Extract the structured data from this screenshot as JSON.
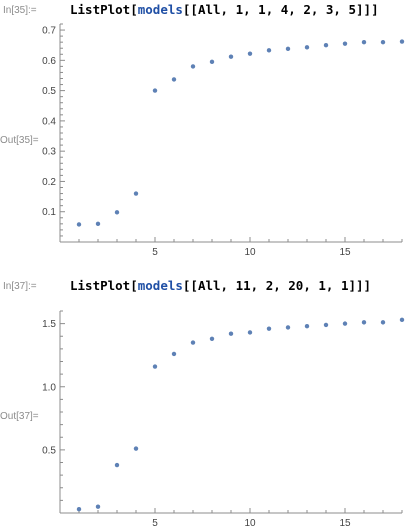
{
  "cells": [
    {
      "in_label": "In[35]:=",
      "out_label": "Out[35]=",
      "input": {
        "fn": "ListPlot",
        "open": "[",
        "sym": "models",
        "args": "[[All, 1, 1, 4, 2, 3, 5]]",
        "close": "]"
      }
    },
    {
      "in_label": "In[37]:=",
      "out_label": "Out[37]=",
      "input": {
        "fn": "ListPlot",
        "open": "[",
        "sym": "models",
        "args": "[[All, 11, 2, 20, 1, 1]]",
        "close": "]"
      }
    }
  ],
  "colors": {
    "points": "#5e81b5",
    "axis": "#8c8c8c",
    "in_label": "#8c8c8c",
    "symbol": "#1f4fa5"
  },
  "chart_data": [
    {
      "type": "scatter",
      "title": "",
      "xlabel": "",
      "ylabel": "",
      "xlim": [
        0,
        18
      ],
      "ylim": [
        0,
        0.72
      ],
      "x_ticks": [
        5,
        10,
        15
      ],
      "x_tick_labels": [
        "5",
        "10",
        "15"
      ],
      "y_ticks": [
        0.1,
        0.2,
        0.3,
        0.4,
        0.5,
        0.6,
        0.7
      ],
      "y_tick_labels": [
        "0.1",
        "0.2",
        "0.3",
        "0.4",
        "0.5",
        "0.6",
        "0.7"
      ],
      "grid": false,
      "series": [
        {
          "x": [
            1,
            2,
            3,
            4,
            5,
            6,
            7,
            8,
            9,
            10,
            11,
            12,
            13,
            14,
            15,
            16,
            17,
            18
          ],
          "y": [
            0.058,
            0.06,
            0.098,
            0.16,
            0.5,
            0.537,
            0.58,
            0.595,
            0.612,
            0.622,
            0.633,
            0.638,
            0.643,
            0.65,
            0.655,
            0.66,
            0.66,
            0.662
          ]
        }
      ]
    },
    {
      "type": "scatter",
      "title": "",
      "xlabel": "",
      "ylabel": "",
      "xlim": [
        0,
        18
      ],
      "ylim": [
        0,
        1.6
      ],
      "x_ticks": [
        5,
        10,
        15
      ],
      "x_tick_labels": [
        "5",
        "10",
        "15"
      ],
      "y_ticks": [
        0.5,
        1.0,
        1.5
      ],
      "y_tick_labels": [
        "0.5",
        "1.0",
        "1.5"
      ],
      "grid": false,
      "series": [
        {
          "x": [
            1,
            2,
            3,
            4,
            5,
            6,
            7,
            8,
            9,
            10,
            11,
            12,
            13,
            14,
            15,
            16,
            17,
            18
          ],
          "y": [
            0.03,
            0.05,
            0.38,
            0.51,
            1.16,
            1.26,
            1.35,
            1.38,
            1.42,
            1.43,
            1.46,
            1.47,
            1.48,
            1.49,
            1.5,
            1.51,
            1.51,
            1.53
          ]
        }
      ]
    }
  ]
}
